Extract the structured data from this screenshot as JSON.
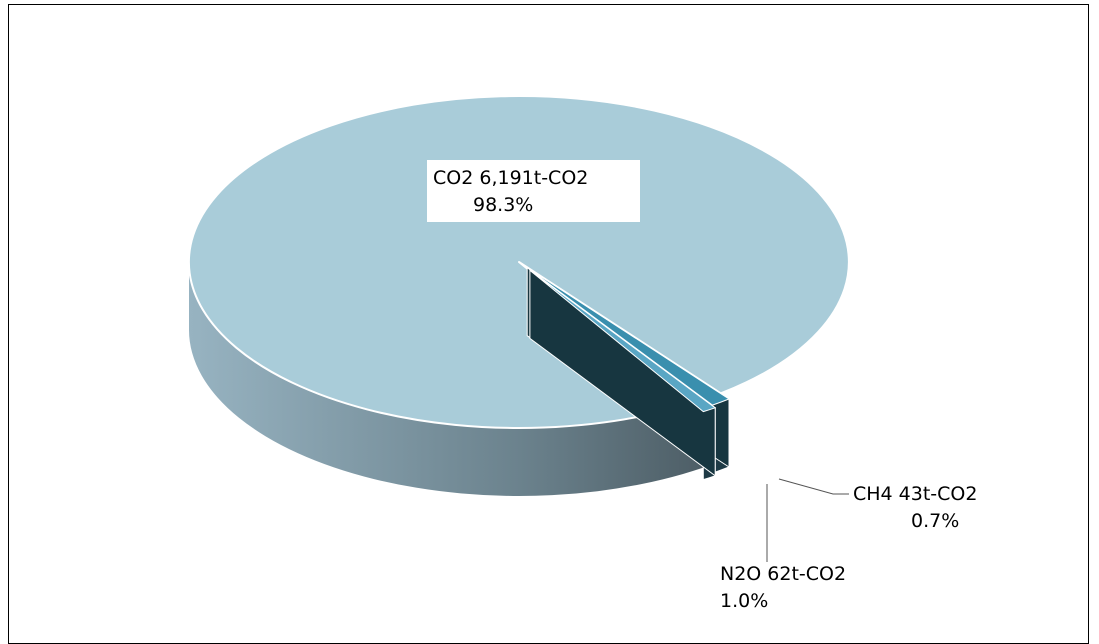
{
  "chart_data": {
    "type": "pie",
    "style": "3d-exploded",
    "unit": "t-CO2",
    "slices": [
      {
        "name": "CO2",
        "value": 6191,
        "value_label": "6,191t-CO2",
        "percent_label": "98.3%",
        "color": "#a9ccd9"
      },
      {
        "name": "N2O",
        "value": 62,
        "value_label": "62t-CO2",
        "percent_label": "1.0%",
        "color": "#3a8fae"
      },
      {
        "name": "CH4",
        "value": 43,
        "value_label": "43t-CO2",
        "percent_label": "0.7%",
        "color": "#5aa6c4"
      }
    ],
    "legend": "none",
    "data_labels": "outside-with-leader-lines"
  }
}
